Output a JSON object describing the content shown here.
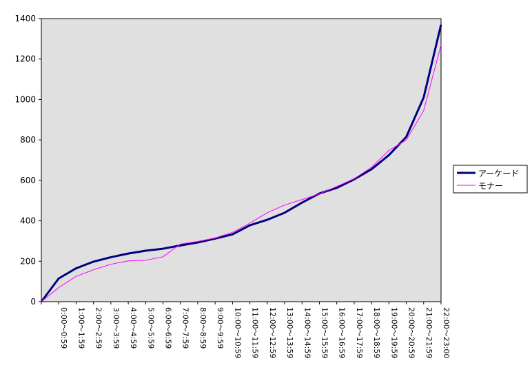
{
  "chart_data": {
    "type": "line",
    "categories": [
      null,
      "0:00～0:59",
      "1:00～1:59",
      "2:00～2:59",
      "3:00～3:59",
      "4:00～4:59",
      "5:00～5:59",
      "6:00～6:59",
      "7:00～7:59",
      "8:00～8:59",
      "9:00～9:59",
      "10:00～10:59",
      "11:00～11:59",
      "12:00～12:59",
      "13:00～13:59",
      "14:00～14:59",
      "15:00～15:59",
      "16:00～16:59",
      "17:00～17:59",
      "18:00～18:59",
      "19:00～19:59",
      "20:00～20:59",
      "21:00～21:59",
      "22:00～23:00"
    ],
    "series": [
      {
        "name": "アーケード",
        "color": "#000080",
        "values": [
          0,
          115,
          165,
          198,
          220,
          238,
          252,
          262,
          278,
          293,
          312,
          333,
          378,
          405,
          440,
          490,
          535,
          563,
          605,
          655,
          725,
          815,
          1010,
          1370
        ]
      },
      {
        "name": "モナー",
        "color": "#ff00ff",
        "values": [
          0,
          70,
          125,
          158,
          185,
          202,
          205,
          222,
          285,
          298,
          315,
          343,
          388,
          440,
          478,
          505,
          533,
          570,
          608,
          665,
          748,
          800,
          945,
          1270
        ]
      }
    ],
    "ylim": [
      0,
      1400
    ],
    "yticks": [
      0,
      200,
      400,
      600,
      800,
      1000,
      1200,
      1400
    ],
    "legend": "right"
  }
}
